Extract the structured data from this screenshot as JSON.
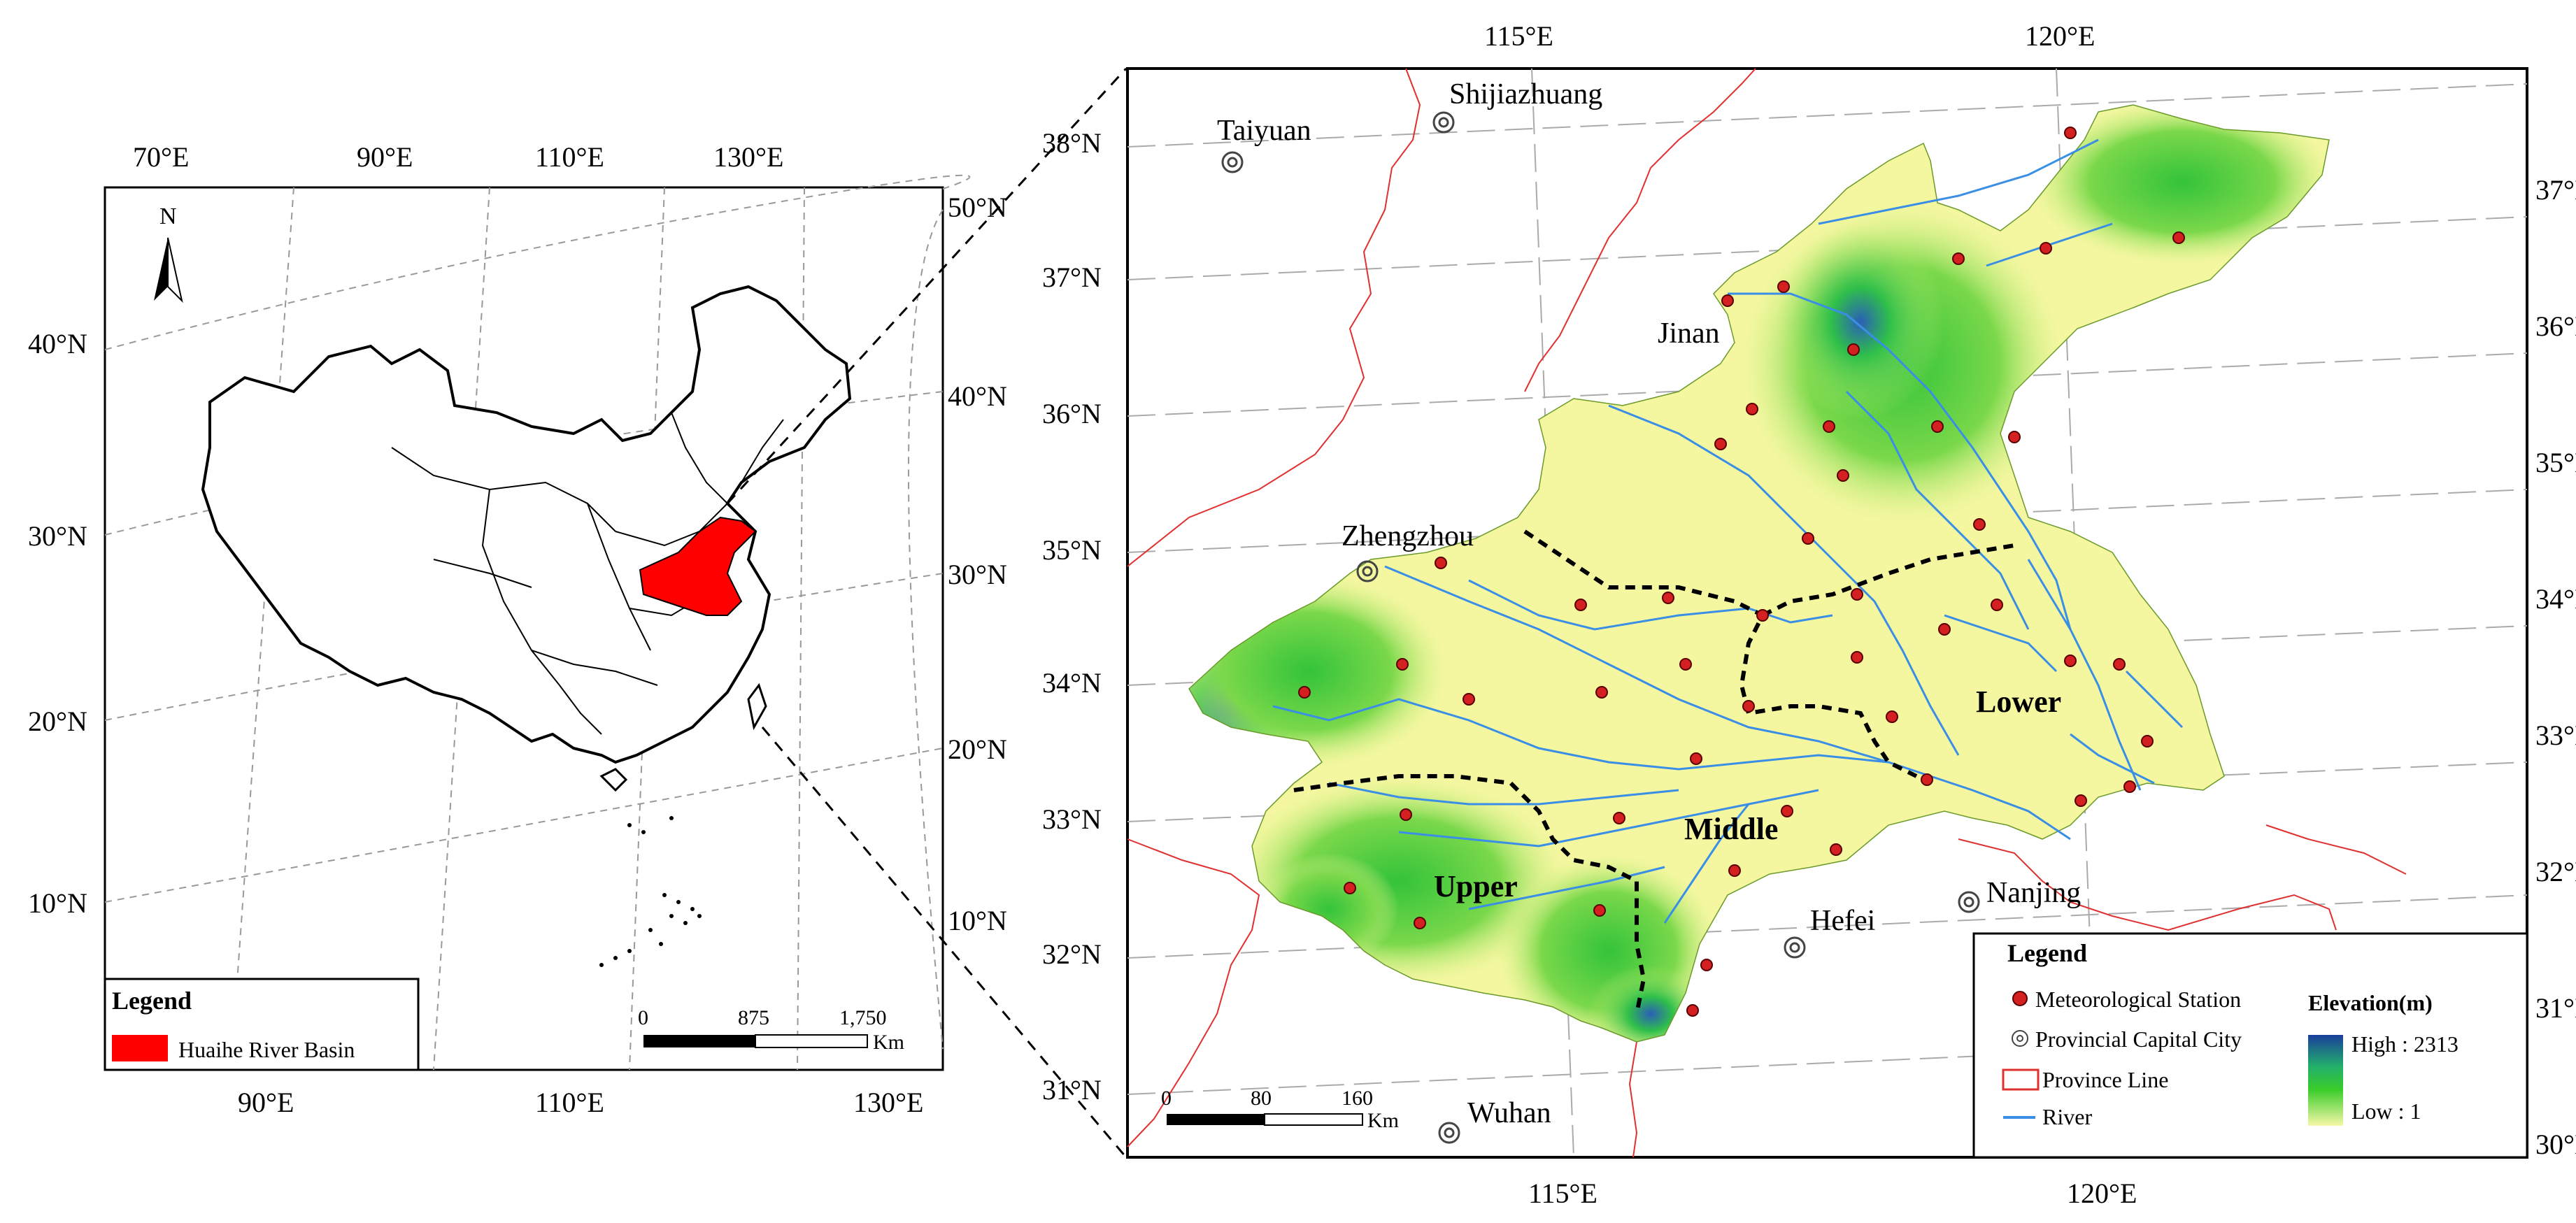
{
  "left_map": {
    "north_label": "N",
    "top_lon_labels": [
      "70°E",
      "90°E",
      "110°E",
      "130°E"
    ],
    "bottom_lon_labels": [
      "90°E",
      "110°E",
      "130°E"
    ],
    "left_lat_labels": [
      "40°N",
      "30°N",
      "20°N",
      "10°N"
    ],
    "right_lat_labels": [
      "50°N",
      "40°N",
      "30°N",
      "20°N",
      "10°N"
    ],
    "legend": {
      "title": "Legend",
      "items": [
        {
          "label": "Huaihe River Basin",
          "color": "#ff0000"
        }
      ]
    },
    "scale": {
      "ticks": [
        "0",
        "875",
        "1,750"
      ],
      "unit": "Km"
    }
  },
  "right_map": {
    "top_lon_labels": [
      "115°E",
      "120°E"
    ],
    "bottom_lon_labels": [
      "115°E",
      "120°E"
    ],
    "left_lat_labels": [
      "38°N",
      "37°N",
      "36°N",
      "35°N",
      "34°N",
      "33°N",
      "32°N",
      "31°N"
    ],
    "right_lat_labels": [
      "37°N",
      "36°N",
      "35°N",
      "34°N",
      "33°N",
      "32°N",
      "31°N",
      "30°N"
    ],
    "cities": [
      "Taiyuan",
      "Shijiazhuang",
      "Jinan",
      "Zhengzhou",
      "Hefei",
      "Nanjing",
      "Wuhan"
    ],
    "regions": [
      "Upper",
      "Middle",
      "Lower"
    ],
    "legend": {
      "title": "Legend",
      "items": [
        {
          "label": "Meteorological Station",
          "symbol": "red-dot"
        },
        {
          "label": "Provincial Capital City",
          "symbol": "double-circle"
        },
        {
          "label": "Province Line",
          "symbol": "red-box"
        },
        {
          "label": "River",
          "symbol": "blue-line"
        }
      ],
      "elevation_title": "Elevation(m)",
      "elevation_high": "High : 2313",
      "elevation_low": "Low : 1"
    },
    "scale": {
      "ticks": [
        "0",
        "80",
        "160"
      ],
      "unit": "Km"
    }
  },
  "colors": {
    "basin_fill": "#ff0000",
    "station": "#d42020",
    "province_line": "#e03030",
    "river": "#3a8ee6",
    "elev_high": "#1a3f9c",
    "elev_mid": "#33cc33",
    "elev_low": "#f4f7a0"
  }
}
